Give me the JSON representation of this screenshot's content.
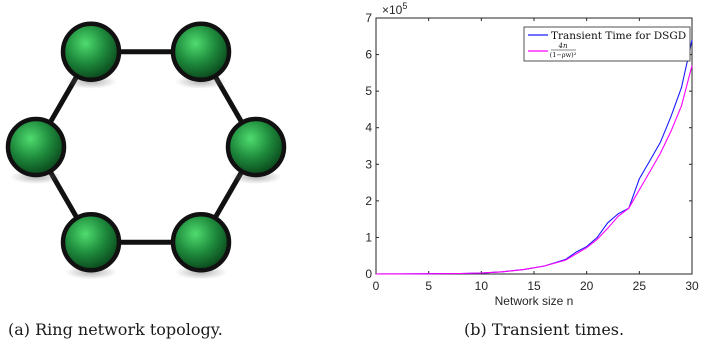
{
  "figure_a": {
    "caption": "(a) Ring network topology.",
    "node_count": 6,
    "node_color": "#1e8a3c",
    "edge_color": "#111111"
  },
  "figure_b": {
    "caption": "(b) Transient times.",
    "chart_data": {
      "type": "line",
      "xlabel": "Network size n",
      "ylabel": "",
      "xlim": [
        0,
        30
      ],
      "ylim": [
        0,
        700000
      ],
      "xticks": [
        "0",
        "5",
        "10",
        "15",
        "20",
        "25",
        "30"
      ],
      "yticks": [
        "0",
        "1",
        "2",
        "3",
        "4",
        "5",
        "6",
        "7"
      ],
      "y_exponent_label": "×10",
      "y_exponent_power": "5",
      "grid": false,
      "legend_position": "top-right",
      "series": [
        {
          "name": "Transient Time for DSGD",
          "color": "#1a1aff",
          "x": [
            0,
            2,
            4,
            6,
            8,
            10,
            12,
            14,
            16,
            18,
            19,
            20,
            21,
            22,
            23,
            24,
            25,
            26,
            27,
            28,
            29,
            30
          ],
          "y": [
            0,
            300,
            600,
            1000,
            1500,
            2500,
            6000,
            12000,
            22000,
            40000,
            60000,
            75000,
            100000,
            140000,
            165000,
            180000,
            260000,
            310000,
            360000,
            430000,
            510000,
            640000
          ]
        },
        {
          "name": "4n / (1-ρw)²",
          "legend_num": "4n",
          "legend_den": "(1−ρw)²",
          "color": "#ff00ff",
          "x": [
            0,
            2,
            4,
            6,
            8,
            10,
            12,
            14,
            16,
            18,
            19,
            20,
            21,
            22,
            23,
            24,
            25,
            26,
            27,
            28,
            29,
            30
          ],
          "y": [
            0,
            200,
            500,
            900,
            1500,
            2800,
            6000,
            12000,
            22000,
            38000,
            55000,
            72000,
            95000,
            125000,
            158000,
            180000,
            230000,
            280000,
            330000,
            390000,
            460000,
            570000
          ]
        }
      ]
    }
  }
}
